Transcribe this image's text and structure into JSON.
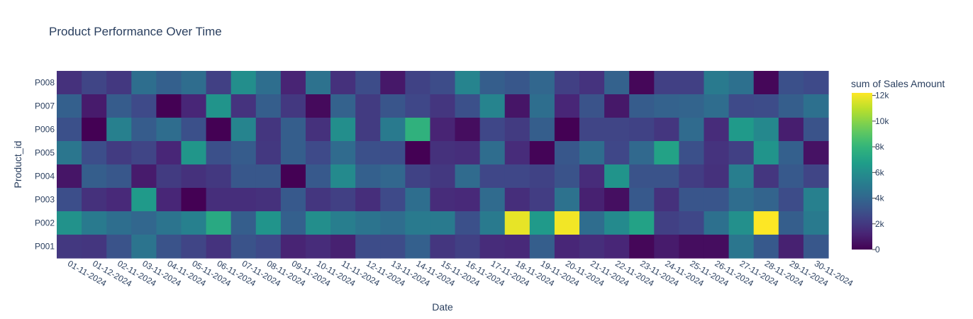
{
  "chart_data": {
    "type": "heatmap",
    "title": "Product Performance Over Time",
    "xlabel": "Date",
    "ylabel": "Product_id",
    "colorbar_title": "sum of Sales Amount",
    "colorscale": "viridis",
    "zrange": [
      0,
      12200
    ],
    "colorbar_ticks": [
      {
        "value": 0,
        "label": "0"
      },
      {
        "value": 2000,
        "label": "2k"
      },
      {
        "value": 4000,
        "label": "4k"
      },
      {
        "value": 6000,
        "label": "6k"
      },
      {
        "value": 8000,
        "label": "8k"
      },
      {
        "value": 10000,
        "label": "10k"
      },
      {
        "value": 12000,
        "label": "12k"
      }
    ],
    "x": [
      "01-11-2024",
      "01-12-2024",
      "02-11-2024",
      "03-11-2024",
      "04-11-2024",
      "05-11-2024",
      "06-11-2024",
      "07-11-2024",
      "08-11-2024",
      "09-11-2024",
      "10-11-2024",
      "11-11-2024",
      "12-11-2024",
      "13-11-2024",
      "14-11-2024",
      "15-11-2024",
      "16-11-2024",
      "17-11-2024",
      "18-11-2024",
      "19-11-2024",
      "20-11-2024",
      "21-11-2024",
      "22-11-2024",
      "23-11-2024",
      "24-11-2024",
      "25-11-2024",
      "26-11-2024",
      "27-11-2024",
      "28-11-2024",
      "29-11-2024",
      "30-11-2024"
    ],
    "y": [
      "P008",
      "P007",
      "P006",
      "P005",
      "P004",
      "P003",
      "P002",
      "P001"
    ],
    "z": [
      [
        1700,
        2500,
        2000,
        4400,
        3700,
        4300,
        2300,
        6000,
        4400,
        1200,
        4600,
        1700,
        2800,
        800,
        2400,
        2800,
        5500,
        3600,
        3300,
        4000,
        2300,
        1800,
        3800,
        200,
        2300,
        2300,
        5000,
        4500,
        200,
        3000,
        2700
      ],
      [
        3700,
        900,
        3500,
        2700,
        0,
        1300,
        6300,
        1800,
        3600,
        2000,
        300,
        3800,
        2100,
        3200,
        2600,
        1900,
        3000,
        5500,
        700,
        4400,
        1300,
        3100,
        800,
        3500,
        3800,
        3900,
        4300,
        2700,
        2800,
        3600,
        4500
      ],
      [
        3000,
        0,
        5300,
        3500,
        4300,
        3000,
        0,
        5500,
        1900,
        3600,
        1700,
        6000,
        2100,
        5000,
        7800,
        1200,
        400,
        2600,
        2100,
        3600,
        0,
        2500,
        2500,
        2400,
        1900,
        4200,
        1500,
        6600,
        5700,
        1000,
        3100
      ],
      [
        4800,
        2900,
        2100,
        2500,
        1300,
        6400,
        3000,
        3500,
        2000,
        3600,
        2700,
        4200,
        3000,
        2900,
        0,
        1700,
        1600,
        4300,
        1500,
        100,
        3300,
        4300,
        2600,
        4100,
        7000,
        3000,
        1800,
        2300,
        6300,
        3700,
        600
      ],
      [
        700,
        3600,
        3300,
        900,
        2100,
        1700,
        2000,
        3300,
        3300,
        0,
        3400,
        5800,
        3700,
        4000,
        2400,
        2000,
        4200,
        2600,
        2600,
        2400,
        3100,
        1500,
        6300,
        3100,
        3100,
        2200,
        1700,
        5200,
        1900,
        3400,
        2500
      ],
      [
        2900,
        1700,
        1400,
        6600,
        1300,
        0,
        1600,
        1600,
        1700,
        3400,
        1900,
        2300,
        1600,
        2700,
        4400,
        1500,
        1400,
        4200,
        1600,
        2200,
        4600,
        1100,
        500,
        3400,
        1700,
        3200,
        3200,
        4300,
        3900,
        2800,
        5300
      ],
      [
        6200,
        5000,
        4400,
        4000,
        4700,
        5300,
        7400,
        3600,
        6300,
        3700,
        6000,
        5200,
        4700,
        4300,
        5000,
        5000,
        3000,
        5000,
        11800,
        6600,
        12000,
        4300,
        5800,
        7000,
        2300,
        2600,
        4500,
        6100,
        12200,
        3600,
        5000
      ],
      [
        2000,
        1900,
        3100,
        4700,
        3100,
        2500,
        1800,
        3100,
        2700,
        1200,
        1500,
        1100,
        2800,
        2800,
        3700,
        1900,
        2300,
        1500,
        1400,
        3600,
        1300,
        1600,
        1300,
        200,
        900,
        400,
        400,
        4800,
        3400,
        1100,
        3300
      ]
    ]
  }
}
